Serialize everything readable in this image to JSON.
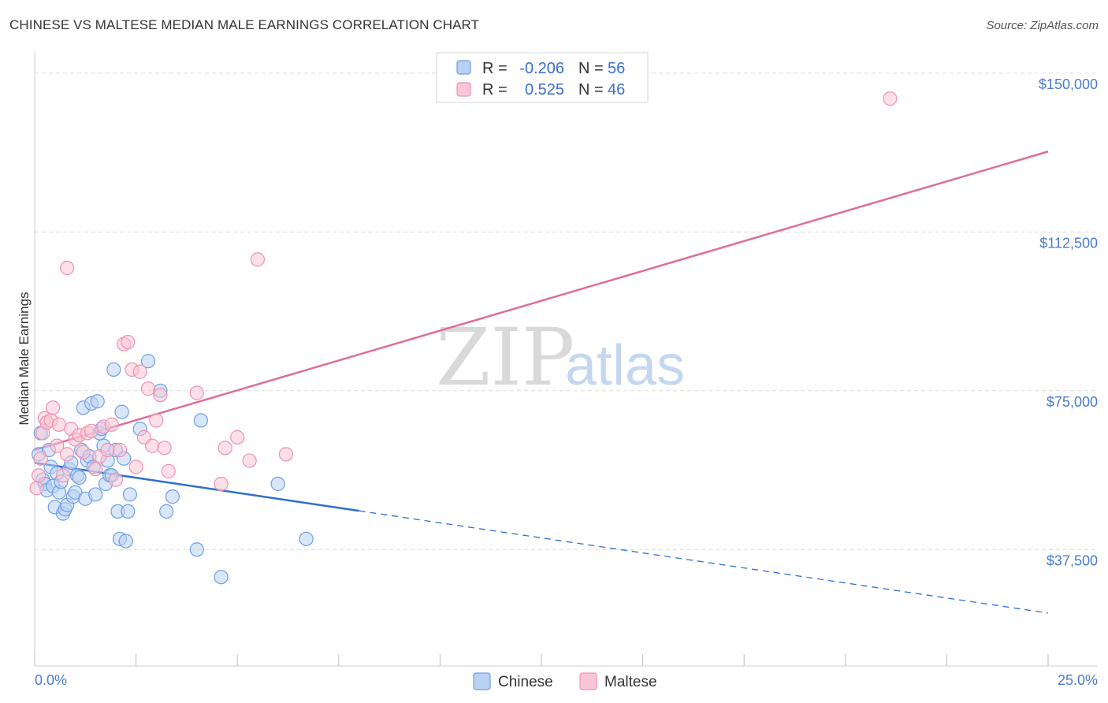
{
  "header": {
    "title": "CHINESE VS MALTESE MEDIAN MALE EARNINGS CORRELATION CHART",
    "source": "Source: ZipAtlas.com"
  },
  "watermark": {
    "zip": "ZIP",
    "atlas": "atlas"
  },
  "colors": {
    "chinese": "#6d9ee6",
    "chinese_fill": "#b9d1f3",
    "chinese_line": "#2f6fce",
    "maltese": "#ee92b0",
    "maltese_fill": "#f8c6d6",
    "maltese_line": "#e06d96",
    "grid": "#dcdcdc",
    "axis_text": "#4a7bd0"
  },
  "legend": {
    "rows": [
      {
        "r_label": "R =",
        "r_value": "-0.206",
        "n_label": "N =",
        "n_value": "56"
      },
      {
        "r_label": "R =",
        "r_value": "0.525",
        "n_label": "N =",
        "n_value": "46"
      }
    ]
  },
  "bottom_legend": [
    "Chinese",
    "Maltese"
  ],
  "chart_data": {
    "type": "scatter",
    "title": "CHINESE VS MALTESE MEDIAN MALE EARNINGS CORRELATION CHART",
    "xlabel": "",
    "ylabel": "Median Male Earnings",
    "xlim": [
      0,
      25
    ],
    "ylim": [
      10000,
      155000
    ],
    "x_tick_labels": [
      "0.0%",
      "25.0%"
    ],
    "y_ticks": [
      37500,
      75000,
      112500,
      150000
    ],
    "y_tick_labels": [
      "$37,500",
      "$75,000",
      "$112,500",
      "$150,000"
    ],
    "grid": true,
    "legend_position": "top-center",
    "series": [
      {
        "name": "Chinese",
        "r": -0.206,
        "n": 56,
        "trend": {
          "x0": 0,
          "y0": 58000,
          "x1": 25,
          "y1": 22500,
          "solid_until_x": 8
        },
        "points": [
          [
            0.1,
            60000
          ],
          [
            0.15,
            65000
          ],
          [
            0.2,
            54000
          ],
          [
            0.25,
            53000
          ],
          [
            0.3,
            51500
          ],
          [
            0.35,
            61000
          ],
          [
            0.4,
            57000
          ],
          [
            0.45,
            52500
          ],
          [
            0.5,
            47500
          ],
          [
            0.55,
            55500
          ],
          [
            0.6,
            51000
          ],
          [
            0.65,
            53500
          ],
          [
            0.7,
            46000
          ],
          [
            0.75,
            47000
          ],
          [
            0.8,
            48000
          ],
          [
            0.85,
            56500
          ],
          [
            0.9,
            58000
          ],
          [
            0.95,
            50000
          ],
          [
            1.0,
            51000
          ],
          [
            1.05,
            55000
          ],
          [
            1.1,
            54500
          ],
          [
            1.15,
            61000
          ],
          [
            1.2,
            71000
          ],
          [
            1.25,
            49500
          ],
          [
            1.3,
            58500
          ],
          [
            1.35,
            59500
          ],
          [
            1.4,
            72000
          ],
          [
            1.45,
            57000
          ],
          [
            1.5,
            50500
          ],
          [
            1.55,
            72500
          ],
          [
            1.6,
            65000
          ],
          [
            1.65,
            66000
          ],
          [
            1.7,
            62000
          ],
          [
            1.75,
            53000
          ],
          [
            1.8,
            58500
          ],
          [
            1.85,
            55000
          ],
          [
            1.9,
            55000
          ],
          [
            1.95,
            80000
          ],
          [
            2.0,
            61000
          ],
          [
            2.05,
            46500
          ],
          [
            2.1,
            40000
          ],
          [
            2.15,
            70000
          ],
          [
            2.2,
            59000
          ],
          [
            2.25,
            39500
          ],
          [
            2.3,
            46500
          ],
          [
            2.35,
            50500
          ],
          [
            2.6,
            66000
          ],
          [
            2.8,
            82000
          ],
          [
            3.1,
            75000
          ],
          [
            3.25,
            46500
          ],
          [
            3.4,
            50000
          ],
          [
            4.0,
            37500
          ],
          [
            4.1,
            68000
          ],
          [
            4.6,
            31000
          ],
          [
            6.0,
            53000
          ],
          [
            6.7,
            40000
          ]
        ]
      },
      {
        "name": "Maltese",
        "r": 0.525,
        "n": 46,
        "trend": {
          "x0": 0,
          "y0": 61000,
          "x1": 25,
          "y1": 131500
        },
        "points": [
          [
            0.05,
            52000
          ],
          [
            0.1,
            55000
          ],
          [
            0.15,
            59000
          ],
          [
            0.2,
            65000
          ],
          [
            0.25,
            68500
          ],
          [
            0.3,
            67500
          ],
          [
            0.4,
            68000
          ],
          [
            0.45,
            71000
          ],
          [
            0.55,
            62000
          ],
          [
            0.6,
            67000
          ],
          [
            0.7,
            55000
          ],
          [
            0.8,
            60000
          ],
          [
            0.9,
            66000
          ],
          [
            1.0,
            63500
          ],
          [
            1.1,
            64500
          ],
          [
            1.2,
            60500
          ],
          [
            1.3,
            65000
          ],
          [
            1.4,
            65500
          ],
          [
            1.5,
            56500
          ],
          [
            1.6,
            59500
          ],
          [
            1.7,
            66500
          ],
          [
            1.8,
            61000
          ],
          [
            1.9,
            67000
          ],
          [
            2.0,
            54000
          ],
          [
            2.1,
            61000
          ],
          [
            2.2,
            86000
          ],
          [
            2.3,
            86500
          ],
          [
            2.4,
            80000
          ],
          [
            2.5,
            57000
          ],
          [
            2.6,
            79500
          ],
          [
            2.7,
            64000
          ],
          [
            2.8,
            75500
          ],
          [
            2.9,
            62000
          ],
          [
            3.0,
            68000
          ],
          [
            3.1,
            74000
          ],
          [
            3.2,
            61500
          ],
          [
            3.3,
            56000
          ],
          [
            0.8,
            104000
          ],
          [
            4.0,
            74500
          ],
          [
            4.6,
            53000
          ],
          [
            4.7,
            61500
          ],
          [
            5.0,
            64000
          ],
          [
            5.3,
            58500
          ],
          [
            5.5,
            106000
          ],
          [
            6.2,
            60000
          ],
          [
            21.1,
            144000
          ]
        ]
      }
    ]
  }
}
